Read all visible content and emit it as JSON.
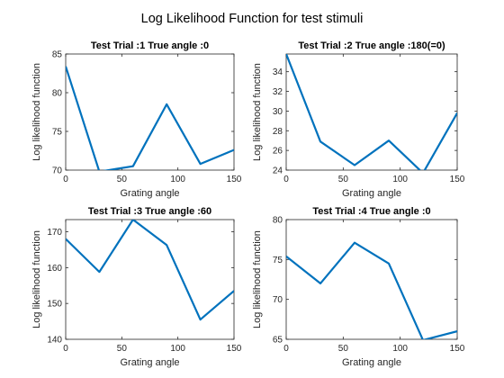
{
  "figure_title": "Log Likelihood Function for test stimuli",
  "colors": {
    "line": "#0072BD",
    "axes": "#262626",
    "background": "#ffffff"
  },
  "chart_data": [
    {
      "type": "line",
      "title": "Test Trial :1  True angle :0",
      "xlabel": "Grating angle",
      "ylabel": "Log likelihood function",
      "x": [
        0,
        30,
        60,
        90,
        120,
        150
      ],
      "y": [
        83.4,
        69.8,
        70.5,
        78.5,
        70.8,
        72.6
      ],
      "xlim": [
        0,
        150
      ],
      "ylim": [
        70,
        85
      ],
      "xticks": [
        "0",
        "50",
        "100",
        "150"
      ],
      "yticks": [
        "70",
        "75",
        "80",
        "85"
      ],
      "grid": false
    },
    {
      "type": "line",
      "title": "Test Trial :2  True angle :180(=0)",
      "xlabel": "Grating angle",
      "ylabel": "Log likelihood function",
      "x": [
        0,
        30,
        60,
        90,
        120,
        150
      ],
      "y": [
        35.8,
        26.9,
        24.5,
        27.0,
        23.7,
        29.8
      ],
      "xlim": [
        0,
        150
      ],
      "ylim": [
        24,
        35.8
      ],
      "xticks": [
        "0",
        "50",
        "100",
        "150"
      ],
      "yticks": [
        "24",
        "26",
        "28",
        "30",
        "32",
        "34"
      ],
      "grid": false
    },
    {
      "type": "line",
      "title": "Test Trial :3  True angle :60",
      "xlabel": "Grating angle",
      "ylabel": "Log likelihood function",
      "x": [
        0,
        30,
        60,
        90,
        120,
        150
      ],
      "y": [
        168.0,
        158.8,
        173.4,
        166.3,
        145.5,
        153.5
      ],
      "xlim": [
        0,
        150
      ],
      "ylim": [
        140,
        173.4
      ],
      "xticks": [
        "0",
        "50",
        "100",
        "150"
      ],
      "yticks": [
        "140",
        "150",
        "160",
        "170"
      ],
      "grid": false
    },
    {
      "type": "line",
      "title": "Test Trial :4  True angle :0",
      "xlabel": "Grating angle",
      "ylabel": "Log likelihood function",
      "x": [
        0,
        30,
        60,
        90,
        120,
        150
      ],
      "y": [
        75.4,
        72.0,
        77.1,
        74.5,
        64.9,
        66.0
      ],
      "xlim": [
        0,
        150
      ],
      "ylim": [
        65,
        80
      ],
      "xticks": [
        "0",
        "50",
        "100",
        "150"
      ],
      "yticks": [
        "65",
        "70",
        "75",
        "80"
      ],
      "grid": false
    }
  ]
}
